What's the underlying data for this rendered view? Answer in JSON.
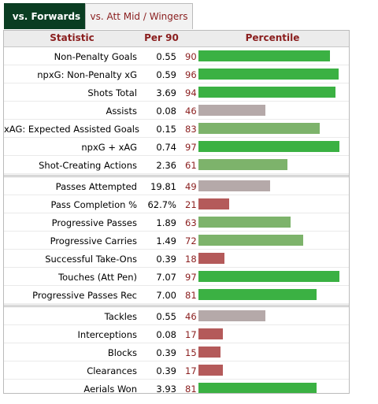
{
  "tabs": [
    {
      "label": "vs. Forwards",
      "active": true
    },
    {
      "label": "vs. Att Mid / Wingers",
      "active": false
    }
  ],
  "header": {
    "statistic": "Statistic",
    "per90": "Per 90",
    "percentile": "Percentile"
  },
  "colors": {
    "high": "#3bb143",
    "good": "#7db36b",
    "mid": "#b5a9a9",
    "low": "#b45a5a"
  },
  "groups": [
    [
      {
        "stat": "Non-Penalty Goals",
        "per90": "0.55",
        "pct": 90,
        "color": "high"
      },
      {
        "stat": "npxG: Non-Penalty xG",
        "per90": "0.59",
        "pct": 96,
        "color": "high"
      },
      {
        "stat": "Shots Total",
        "per90": "3.69",
        "pct": 94,
        "color": "high"
      },
      {
        "stat": "Assists",
        "per90": "0.08",
        "pct": 46,
        "color": "mid"
      },
      {
        "stat": "xAG: Expected Assisted Goals",
        "per90": "0.15",
        "pct": 83,
        "color": "good"
      },
      {
        "stat": "npxG + xAG",
        "per90": "0.74",
        "pct": 97,
        "color": "high"
      },
      {
        "stat": "Shot-Creating Actions",
        "per90": "2.36",
        "pct": 61,
        "color": "good"
      }
    ],
    [
      {
        "stat": "Passes Attempted",
        "per90": "19.81",
        "pct": 49,
        "color": "mid"
      },
      {
        "stat": "Pass Completion %",
        "per90": "62.7%",
        "pct": 21,
        "color": "low"
      },
      {
        "stat": "Progressive Passes",
        "per90": "1.89",
        "pct": 63,
        "color": "good"
      },
      {
        "stat": "Progressive Carries",
        "per90": "1.49",
        "pct": 72,
        "color": "good"
      },
      {
        "stat": "Successful Take-Ons",
        "per90": "0.39",
        "pct": 18,
        "color": "low"
      },
      {
        "stat": "Touches (Att Pen)",
        "per90": "7.07",
        "pct": 97,
        "color": "high"
      },
      {
        "stat": "Progressive Passes Rec",
        "per90": "7.00",
        "pct": 81,
        "color": "high"
      }
    ],
    [
      {
        "stat": "Tackles",
        "per90": "0.55",
        "pct": 46,
        "color": "mid"
      },
      {
        "stat": "Interceptions",
        "per90": "0.08",
        "pct": 17,
        "color": "low"
      },
      {
        "stat": "Blocks",
        "per90": "0.39",
        "pct": 15,
        "color": "low"
      },
      {
        "stat": "Clearances",
        "per90": "0.39",
        "pct": 17,
        "color": "low"
      },
      {
        "stat": "Aerials Won",
        "per90": "3.93",
        "pct": 81,
        "color": "high"
      }
    ]
  ]
}
